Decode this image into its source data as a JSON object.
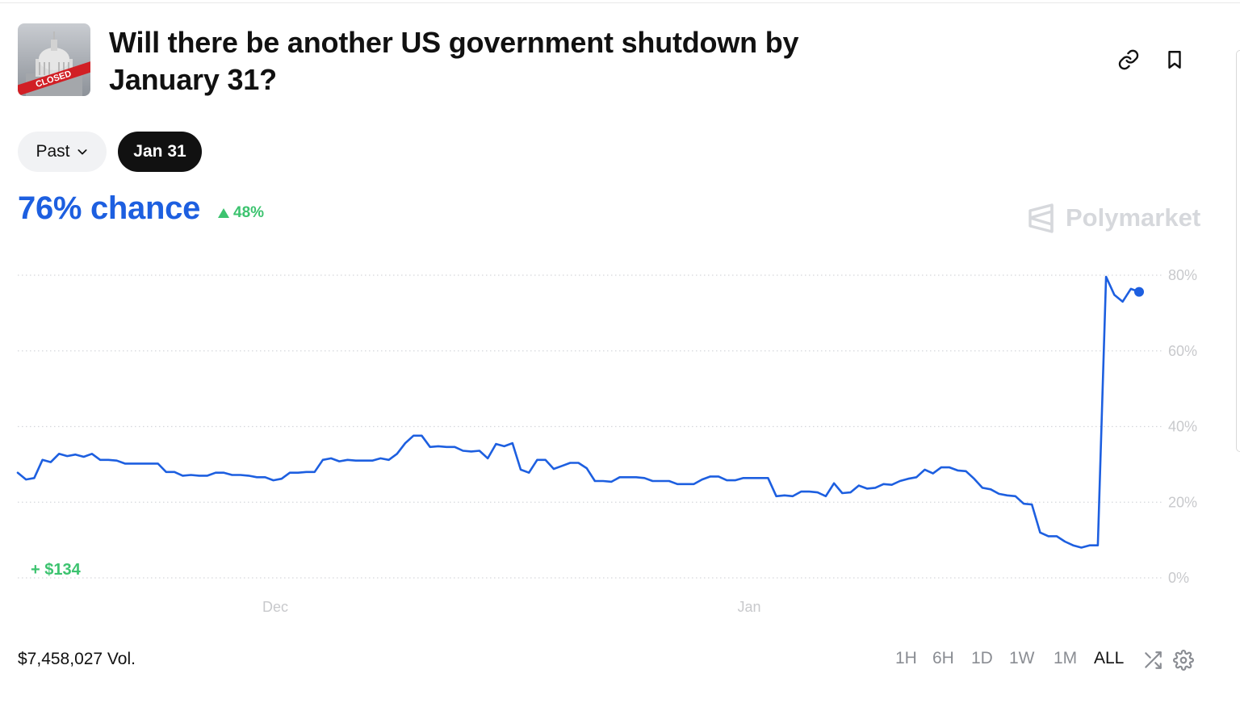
{
  "market": {
    "title": "Will there be another US government shutdown by January 31?",
    "thumbnail_badge": "CLOSED"
  },
  "icons": {
    "link": "link-icon",
    "bookmark": "bookmark-icon",
    "chevron": "chevron-down-icon",
    "shuffle": "shuffle-icon",
    "settings": "gear-icon",
    "brand": "polymarket-logo-icon"
  },
  "filters": {
    "past_label": "Past",
    "date_label": "Jan 31"
  },
  "price": {
    "chance_text": "76% chance",
    "delta_text": "48%",
    "delta_direction": "up"
  },
  "brand": {
    "name": "Polymarket"
  },
  "pnl": {
    "text": "+ $134"
  },
  "volume": {
    "text": "$7,458,027 Vol."
  },
  "time_ranges": [
    "1H",
    "6H",
    "1D",
    "1W",
    "1M",
    "ALL"
  ],
  "active_range": "ALL",
  "colors": {
    "accent": "#1d5fe0",
    "positive": "#3cc36f",
    "grid": "#d5d7db",
    "axis_text": "#c8c9cc"
  },
  "chart_data": {
    "type": "line",
    "y_unit": "%",
    "ylim": [
      0,
      80
    ],
    "y_ticks": [
      "80%",
      "60%",
      "40%",
      "20%",
      "0%"
    ],
    "x_ticks": [
      "Dec",
      "Jan"
    ],
    "grid": true,
    "series": [
      {
        "values": [
          27.8,
          26.0,
          26.4,
          31.2,
          30.6,
          32.8,
          32.2,
          32.6,
          32.0,
          32.8,
          31.2,
          31.2,
          31.0,
          30.2,
          30.2,
          30.2,
          30.2,
          30.2,
          28.0,
          28.0,
          27.0,
          27.2,
          27.0,
          27.0,
          27.8,
          27.8,
          27.2,
          27.2,
          27.0,
          26.6,
          26.6,
          25.8,
          26.2,
          27.8,
          27.8,
          28.0,
          28.0,
          31.2,
          31.6,
          30.8,
          31.2,
          31.0,
          31.0,
          31.0,
          31.6,
          31.2,
          32.8,
          35.6,
          37.6,
          37.6,
          34.6,
          34.8,
          34.6,
          34.6,
          33.6,
          33.4,
          33.6,
          31.6,
          35.4,
          34.8,
          35.6,
          28.6,
          27.8,
          31.2,
          31.2,
          28.8,
          29.6,
          30.4,
          30.4,
          29.0,
          25.6,
          25.6,
          25.4,
          26.6,
          26.6,
          26.6,
          26.4,
          25.6,
          25.6,
          25.6,
          24.8,
          24.8,
          24.8,
          26.0,
          26.8,
          26.8,
          25.8,
          25.8,
          26.4,
          26.4,
          26.4,
          26.4,
          21.6,
          21.8,
          21.6,
          22.8,
          22.8,
          22.6,
          21.6,
          25.0,
          22.4,
          22.6,
          24.4,
          23.6,
          23.8,
          24.8,
          24.6,
          25.6,
          26.2,
          26.6,
          28.6,
          27.6,
          29.2,
          29.2,
          28.4,
          28.2,
          26.2,
          23.8,
          23.4,
          22.2,
          21.8,
          21.6,
          19.6,
          19.4,
          12.0,
          11.0,
          11.0,
          9.6,
          8.6,
          8.0,
          8.6,
          8.6,
          79.6,
          74.8,
          73.0,
          76.4,
          75.6
        ]
      }
    ]
  }
}
